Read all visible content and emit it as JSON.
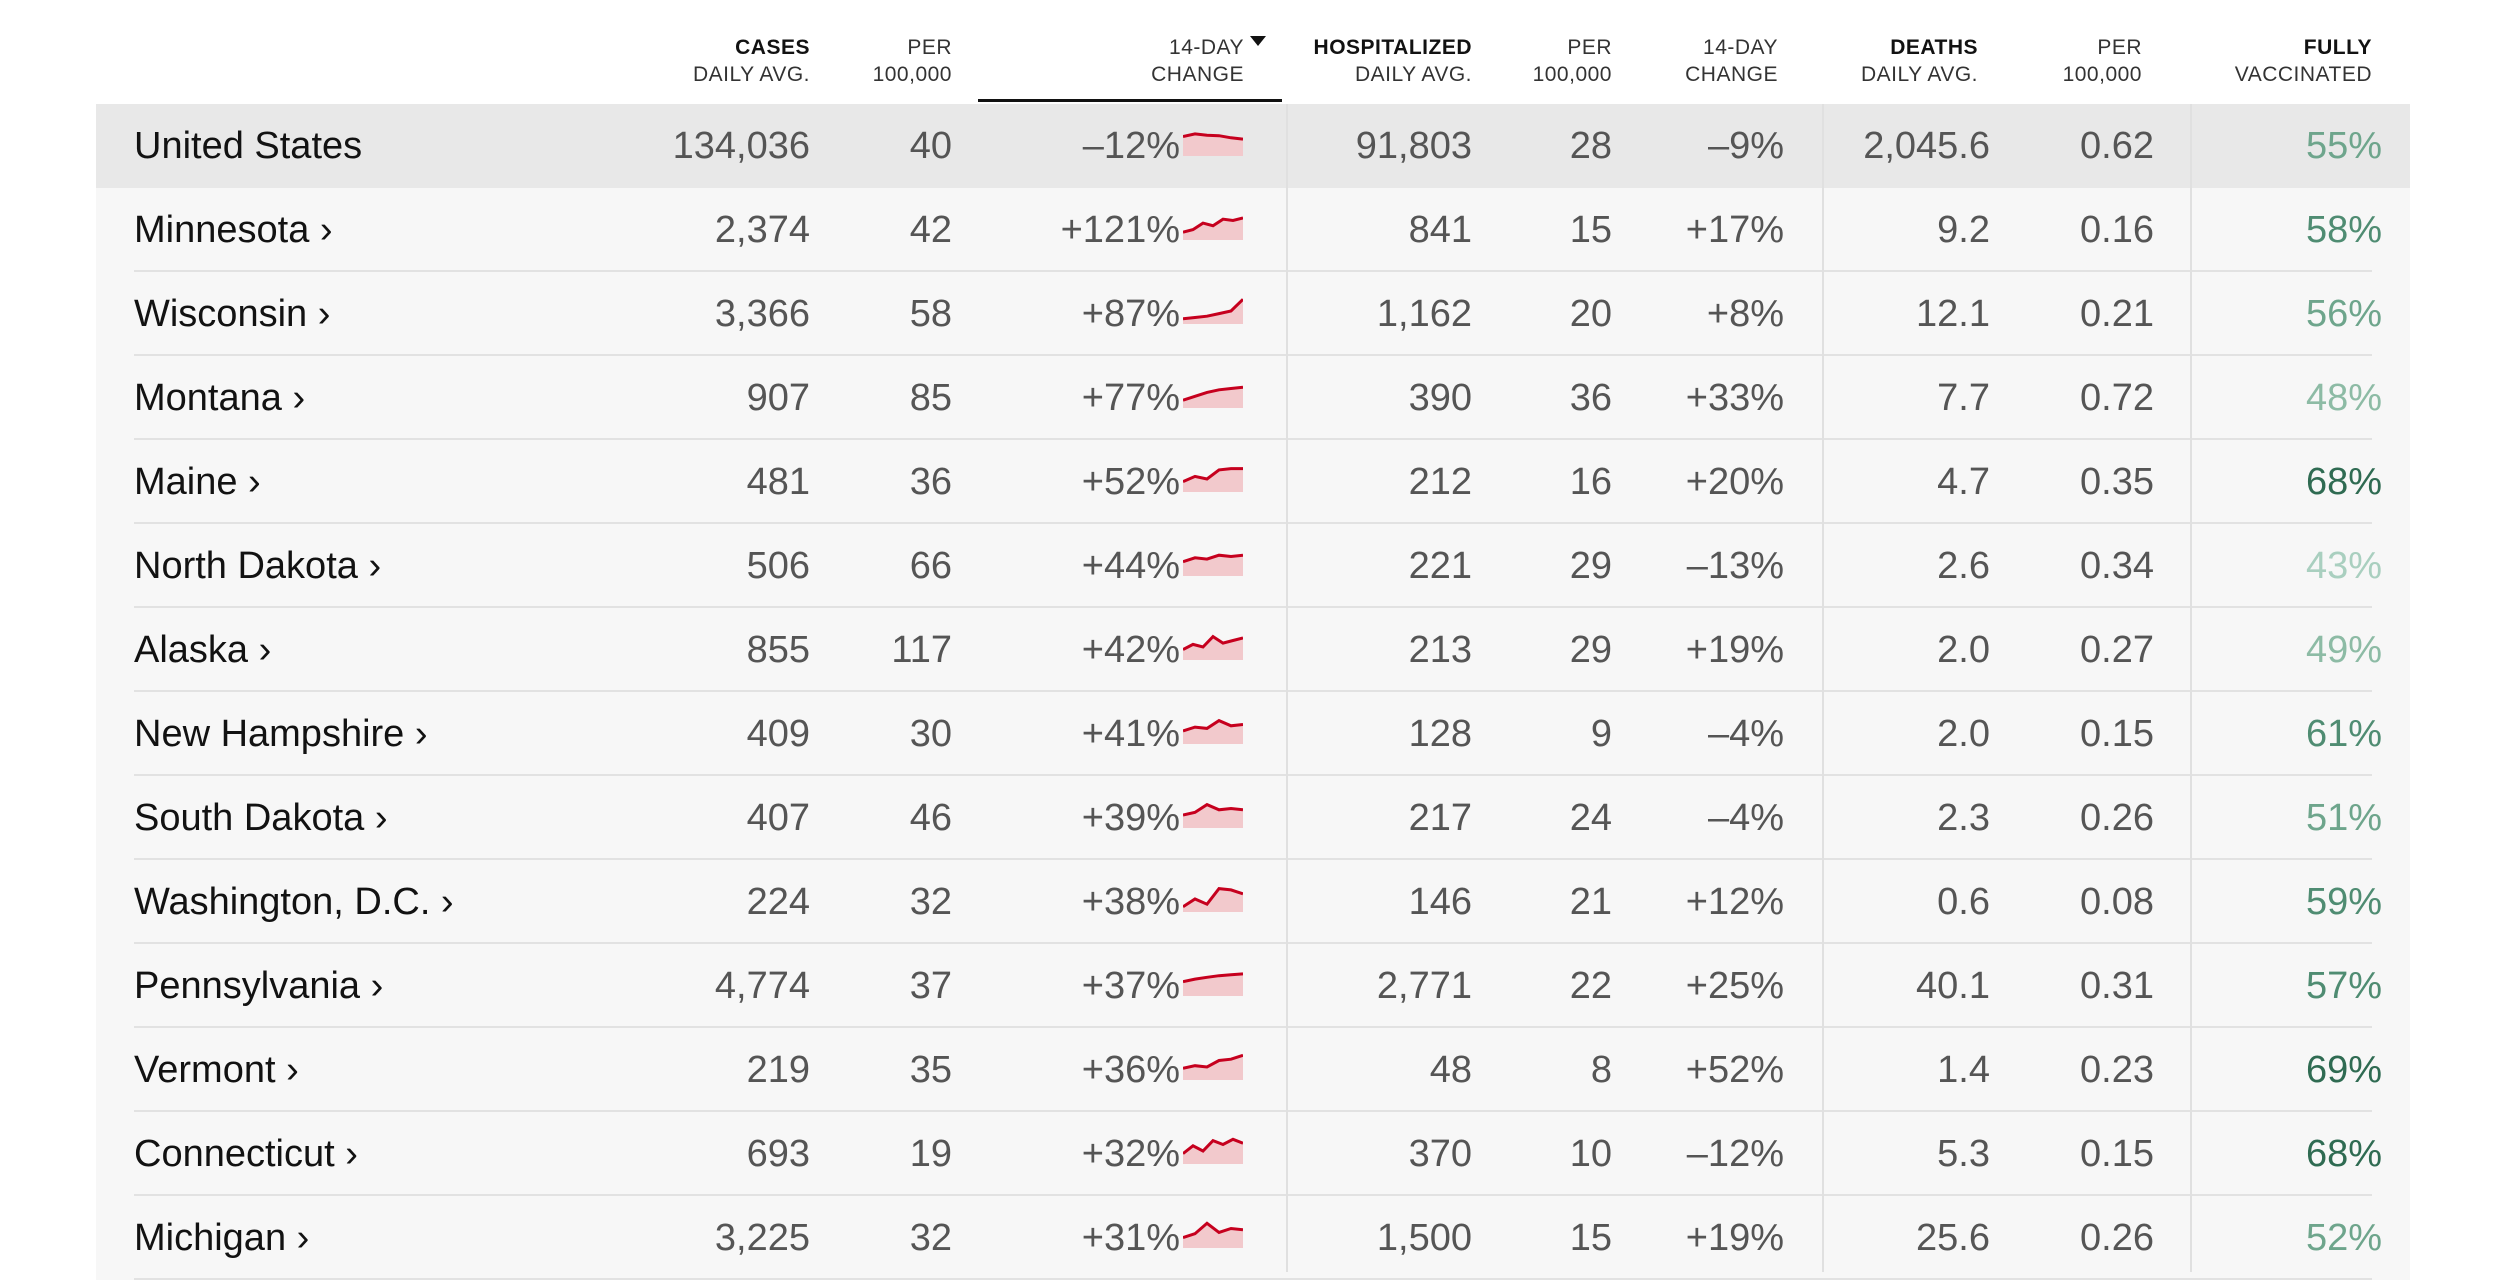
{
  "headers": {
    "cases": {
      "line1": "CASES",
      "line2": "DAILY AVG."
    },
    "cases_per": {
      "line1": "PER",
      "line2": "100,000"
    },
    "cases_change": {
      "line1": "14-DAY",
      "line2": "CHANGE"
    },
    "hosp": {
      "line1": "HOSPITALIZED",
      "line2": "DAILY AVG."
    },
    "hosp_per": {
      "line1": "PER",
      "line2": "100,000"
    },
    "hosp_change": {
      "line1": "14-DAY",
      "line2": "CHANGE"
    },
    "deaths": {
      "line1": "DEATHS",
      "line2": "DAILY AVG."
    },
    "deaths_per": {
      "line1": "PER",
      "line2": "100,000"
    },
    "vax": {
      "line1": "FULLY",
      "line2": "VACCINATED"
    }
  },
  "colors": {
    "spark_line": "#c6001e",
    "spark_fill": "#f2c9cc",
    "vax_shades": [
      "#a9cfbf",
      "#8dbba5",
      "#6ea58c",
      "#4f8c72",
      "#2f6b52"
    ]
  },
  "rows": [
    {
      "name": "United States",
      "cases": "134,036",
      "cases_per": "40",
      "cases_change": "–12%",
      "hosp": "91,803",
      "hosp_per": "28",
      "hosp_change": "–9%",
      "deaths": "2,045.6",
      "deaths_per": "0.62",
      "vax": "55%",
      "vax_level": 2,
      "spark": [
        0.75,
        0.85,
        0.8,
        0.78,
        0.7,
        0.65
      ]
    },
    {
      "name": "Minnesota ›",
      "cases": "2,374",
      "cases_per": "42",
      "cases_change": "+121%",
      "hosp": "841",
      "hosp_per": "15",
      "hosp_change": "+17%",
      "deaths": "9.2",
      "deaths_per": "0.16",
      "vax": "58%",
      "vax_level": 3,
      "spark": [
        0.3,
        0.4,
        0.65,
        0.55,
        0.8,
        0.75,
        0.85
      ]
    },
    {
      "name": "Wisconsin ›",
      "cases": "3,366",
      "cases_per": "58",
      "cases_change": "+87%",
      "hosp": "1,162",
      "hosp_per": "20",
      "hosp_change": "+8%",
      "deaths": "12.1",
      "deaths_per": "0.21",
      "vax": "56%",
      "vax_level": 2,
      "spark": [
        0.2,
        0.25,
        0.3,
        0.4,
        0.5,
        0.95
      ]
    },
    {
      "name": "Montana ›",
      "cases": "907",
      "cases_per": "85",
      "cases_change": "+77%",
      "hosp": "390",
      "hosp_per": "36",
      "hosp_change": "+33%",
      "deaths": "7.7",
      "deaths_per": "0.72",
      "vax": "48%",
      "vax_level": 1,
      "spark": [
        0.3,
        0.45,
        0.6,
        0.7,
        0.75,
        0.8
      ]
    },
    {
      "name": "Maine ›",
      "cases": "481",
      "cases_per": "36",
      "cases_change": "+52%",
      "hosp": "212",
      "hosp_per": "16",
      "hosp_change": "+20%",
      "deaths": "4.7",
      "deaths_per": "0.35",
      "vax": "68%",
      "vax_level": 4,
      "spark": [
        0.4,
        0.6,
        0.5,
        0.85,
        0.9,
        0.9
      ]
    },
    {
      "name": "North Dakota ›",
      "cases": "506",
      "cases_per": "66",
      "cases_change": "+44%",
      "hosp": "221",
      "hosp_per": "29",
      "hosp_change": "–13%",
      "deaths": "2.6",
      "deaths_per": "0.34",
      "vax": "43%",
      "vax_level": 0,
      "spark": [
        0.55,
        0.7,
        0.65,
        0.8,
        0.75,
        0.8
      ]
    },
    {
      "name": "Alaska ›",
      "cases": "855",
      "cases_per": "117",
      "cases_change": "+42%",
      "hosp": "213",
      "hosp_per": "29",
      "hosp_change": "+19%",
      "deaths": "2.0",
      "deaths_per": "0.27",
      "vax": "49%",
      "vax_level": 1,
      "spark": [
        0.4,
        0.6,
        0.5,
        0.9,
        0.65,
        0.75,
        0.85
      ]
    },
    {
      "name": "New Hampshire ›",
      "cases": "409",
      "cases_per": "30",
      "cases_change": "+41%",
      "hosp": "128",
      "hosp_per": "9",
      "hosp_change": "–4%",
      "deaths": "2.0",
      "deaths_per": "0.15",
      "vax": "61%",
      "vax_level": 3,
      "spark": [
        0.5,
        0.65,
        0.6,
        0.9,
        0.7,
        0.75
      ]
    },
    {
      "name": "South Dakota ›",
      "cases": "407",
      "cases_per": "46",
      "cases_change": "+39%",
      "hosp": "217",
      "hosp_per": "24",
      "hosp_change": "–4%",
      "deaths": "2.3",
      "deaths_per": "0.26",
      "vax": "51%",
      "vax_level": 2,
      "spark": [
        0.5,
        0.6,
        0.9,
        0.7,
        0.75,
        0.7
      ]
    },
    {
      "name": "Washington, D.C. ›",
      "cases": "224",
      "cases_per": "32",
      "cases_change": "+38%",
      "hosp": "146",
      "hosp_per": "21",
      "hosp_change": "+12%",
      "deaths": "0.6",
      "deaths_per": "0.08",
      "vax": "59%",
      "vax_level": 3,
      "spark": [
        0.2,
        0.5,
        0.3,
        0.9,
        0.85,
        0.7
      ]
    },
    {
      "name": "Pennsylvania ›",
      "cases": "4,774",
      "cases_per": "37",
      "cases_change": "+37%",
      "hosp": "2,771",
      "hosp_per": "22",
      "hosp_change": "+25%",
      "deaths": "40.1",
      "deaths_per": "0.31",
      "vax": "57%",
      "vax_level": 3,
      "spark": [
        0.55,
        0.65,
        0.72,
        0.78,
        0.82,
        0.85
      ]
    },
    {
      "name": "Vermont ›",
      "cases": "219",
      "cases_per": "35",
      "cases_change": "+36%",
      "hosp": "48",
      "hosp_per": "8",
      "hosp_change": "+52%",
      "deaths": "1.4",
      "deaths_per": "0.23",
      "vax": "69%",
      "vax_level": 4,
      "spark": [
        0.45,
        0.55,
        0.5,
        0.75,
        0.8,
        0.95
      ]
    },
    {
      "name": "Connecticut ›",
      "cases": "693",
      "cases_per": "19",
      "cases_change": "+32%",
      "hosp": "370",
      "hosp_per": "10",
      "hosp_change": "–12%",
      "deaths": "5.3",
      "deaths_per": "0.15",
      "vax": "68%",
      "vax_level": 4,
      "spark": [
        0.4,
        0.7,
        0.5,
        0.9,
        0.75,
        0.95,
        0.8
      ]
    },
    {
      "name": "Michigan ›",
      "cases": "3,225",
      "cases_per": "32",
      "cases_change": "+31%",
      "hosp": "1,500",
      "hosp_per": "15",
      "hosp_change": "+19%",
      "deaths": "25.6",
      "deaths_per": "0.26",
      "vax": "52%",
      "vax_level": 2,
      "spark": [
        0.4,
        0.55,
        0.95,
        0.6,
        0.75,
        0.7
      ]
    }
  ]
}
